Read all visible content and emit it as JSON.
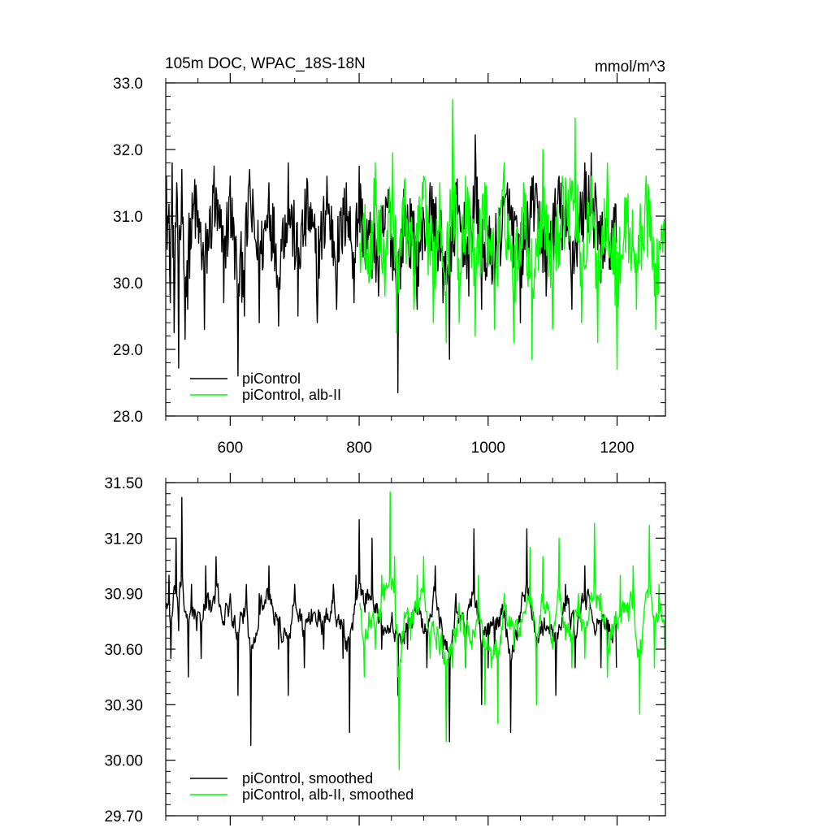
{
  "chart_data": [
    {
      "type": "line",
      "title": "105m DOC, WPAC_18S-18N",
      "units": "mmol/m^3",
      "xlabel": "",
      "ylabel": "",
      "xlim": [
        500,
        1275
      ],
      "ylim": [
        28.0,
        33.0
      ],
      "xticks": [
        600,
        800,
        1000,
        1200
      ],
      "xtick_labels": [
        "600",
        "800",
        "1000",
        "1200"
      ],
      "yticks": [
        28.0,
        29.0,
        30.0,
        31.0,
        32.0,
        33.0
      ],
      "ytick_labels": [
        "28.0",
        "29.0",
        "30.0",
        "31.0",
        "32.0",
        "33.0"
      ],
      "grid": false,
      "legend_position": "bottom-left",
      "series": [
        {
          "name": "piControl",
          "color": "#000000",
          "x_start": 501,
          "x_end": 1199,
          "base": 30.85,
          "noise": 0.55,
          "points": [
            [
              501,
              31.6
            ],
            [
              504,
              30.9
            ],
            [
              507,
              29.7
            ],
            [
              510,
              31.8
            ],
            [
              513,
              29.25
            ],
            [
              517,
              31.5
            ],
            [
              520,
              28.72
            ],
            [
              525,
              31.7
            ],
            [
              530,
              29.15
            ],
            [
              534,
              29.6
            ],
            [
              545,
              31.55
            ],
            [
              560,
              29.3
            ],
            [
              575,
              31.75
            ],
            [
              590,
              29.7
            ],
            [
              600,
              31.6
            ],
            [
              612,
              28.6
            ],
            [
              622,
              29.5
            ],
            [
              630,
              31.7
            ],
            [
              645,
              29.4
            ],
            [
              660,
              31.5
            ],
            [
              675,
              29.35
            ],
            [
              690,
              31.8
            ],
            [
              705,
              29.5
            ],
            [
              720,
              31.5
            ],
            [
              735,
              29.4
            ],
            [
              750,
              31.6
            ],
            [
              765,
              29.6
            ],
            [
              780,
              31.5
            ],
            [
              792,
              29.7
            ],
            [
              800,
              31.75
            ],
            [
              810,
              30.2
            ],
            [
              830,
              29.8
            ],
            [
              845,
              31.4
            ],
            [
              860,
              28.35
            ],
            [
              870,
              31.3
            ],
            [
              890,
              29.6
            ],
            [
              910,
              31.5
            ],
            [
              930,
              29.7
            ],
            [
              940,
              28.85
            ],
            [
              950,
              31.5
            ],
            [
              970,
              29.8
            ],
            [
              980,
              32.22
            ],
            [
              990,
              29.6
            ],
            [
              1010,
              29.9
            ],
            [
              1030,
              31.5
            ],
            [
              1050,
              29.4
            ],
            [
              1070,
              31.6
            ],
            [
              1090,
              29.8
            ],
            [
              1110,
              31.6
            ],
            [
              1130,
              29.6
            ],
            [
              1150,
              31.8
            ],
            [
              1160,
              31.95
            ],
            [
              1175,
              30.0
            ],
            [
              1190,
              30.2
            ],
            [
              1199,
              30.6
            ]
          ]
        },
        {
          "name": "piControl, alb-II",
          "color": "#00ff00",
          "x_start": 801,
          "x_end": 1274,
          "base": 30.75,
          "noise": 0.6,
          "points": [
            [
              801,
              30.6
            ],
            [
              815,
              30.0
            ],
            [
              825,
              31.8
            ],
            [
              840,
              29.8
            ],
            [
              852,
              31.95
            ],
            [
              858,
              29.25
            ],
            [
              870,
              31.5
            ],
            [
              885,
              29.6
            ],
            [
              900,
              31.6
            ],
            [
              915,
              29.4
            ],
            [
              925,
              31.5
            ],
            [
              935,
              29.1
            ],
            [
              945,
              32.75
            ],
            [
              955,
              29.4
            ],
            [
              965,
              31.6
            ],
            [
              980,
              29.2
            ],
            [
              995,
              31.5
            ],
            [
              1010,
              29.3
            ],
            [
              1025,
              31.8
            ],
            [
              1040,
              29.1
            ],
            [
              1055,
              31.5
            ],
            [
              1068,
              28.85
            ],
            [
              1085,
              32.0
            ],
            [
              1100,
              29.3
            ],
            [
              1115,
              31.6
            ],
            [
              1135,
              32.47
            ],
            [
              1145,
              29.4
            ],
            [
              1160,
              31.6
            ],
            [
              1170,
              29.1
            ],
            [
              1185,
              31.8
            ],
            [
              1200,
              28.7
            ],
            [
              1215,
              31.2
            ],
            [
              1230,
              29.6
            ],
            [
              1245,
              31.6
            ],
            [
              1260,
              29.3
            ],
            [
              1274,
              30.6
            ]
          ]
        }
      ]
    },
    {
      "type": "line",
      "title": "",
      "xlabel": "",
      "ylabel": "",
      "xlim": [
        500,
        1275
      ],
      "ylim": [
        29.7,
        31.5
      ],
      "xticks": [
        600,
        800,
        1000,
        1200
      ],
      "xtick_labels": [],
      "yticks": [
        29.7,
        30.0,
        30.3,
        30.6,
        30.9,
        31.2,
        31.5
      ],
      "ytick_labels": [
        "29.70",
        "30.00",
        "30.30",
        "30.60",
        "30.90",
        "31.20",
        "31.50"
      ],
      "grid": false,
      "legend_position": "bottom-left",
      "series": [
        {
          "name": "piControl, smoothed",
          "color": "#000000",
          "x_start": 501,
          "x_end": 1199,
          "base": 30.8,
          "noise": 0.12,
          "points": [
            [
              501,
              30.85
            ],
            [
              505,
              31.0
            ],
            [
              508,
              30.55
            ],
            [
              512,
              30.9
            ],
            [
              516,
              31.2
            ],
            [
              520,
              30.7
            ],
            [
              525,
              31.42
            ],
            [
              530,
              30.8
            ],
            [
              535,
              30.45
            ],
            [
              540,
              30.95
            ],
            [
              548,
              30.7
            ],
            [
              555,
              30.55
            ],
            [
              562,
              31.05
            ],
            [
              570,
              30.8
            ],
            [
              578,
              31.1
            ],
            [
              590,
              30.75
            ],
            [
              600,
              30.9
            ],
            [
              612,
              30.35
            ],
            [
              625,
              30.95
            ],
            [
              632,
              30.08
            ],
            [
              645,
              30.9
            ],
            [
              660,
              31.05
            ],
            [
              675,
              30.6
            ],
            [
              690,
              30.35
            ],
            [
              700,
              30.95
            ],
            [
              715,
              30.5
            ],
            [
              730,
              30.8
            ],
            [
              745,
              30.6
            ],
            [
              760,
              30.95
            ],
            [
              775,
              30.55
            ],
            [
              785,
              30.15
            ],
            [
              795,
              31.0
            ],
            [
              800,
              31.3
            ],
            [
              810,
              30.9
            ],
            [
              820,
              31.2
            ],
            [
              835,
              30.6
            ],
            [
              850,
              30.75
            ],
            [
              860,
              30.35
            ],
            [
              875,
              30.6
            ],
            [
              890,
              30.8
            ],
            [
              905,
              30.5
            ],
            [
              918,
              31.05
            ],
            [
              930,
              30.55
            ],
            [
              940,
              30.1
            ],
            [
              950,
              30.9
            ],
            [
              965,
              30.5
            ],
            [
              978,
              31.25
            ],
            [
              990,
              30.3
            ],
            [
              1000,
              30.5
            ],
            [
              1010,
              30.6
            ],
            [
              1025,
              30.8
            ],
            [
              1035,
              30.15
            ],
            [
              1050,
              30.8
            ],
            [
              1060,
              31.25
            ],
            [
              1075,
              30.5
            ],
            [
              1090,
              30.7
            ],
            [
              1105,
              30.35
            ],
            [
              1120,
              30.95
            ],
            [
              1135,
              30.5
            ],
            [
              1150,
              31.05
            ],
            [
              1165,
              30.7
            ],
            [
              1175,
              30.5
            ],
            [
              1185,
              30.6
            ],
            [
              1199,
              30.5
            ]
          ]
        },
        {
          "name": "piControl, alb-II, smoothed",
          "color": "#00ff00",
          "x_start": 801,
          "x_end": 1274,
          "base": 30.75,
          "noise": 0.14,
          "points": [
            [
              801,
              30.85
            ],
            [
              808,
              30.45
            ],
            [
              815,
              30.8
            ],
            [
              825,
              30.6
            ],
            [
              835,
              31.0
            ],
            [
              848,
              31.45
            ],
            [
              855,
              31.1
            ],
            [
              860,
              30.45
            ],
            [
              862,
              29.95
            ],
            [
              870,
              30.8
            ],
            [
              880,
              30.65
            ],
            [
              890,
              31.0
            ],
            [
              900,
              31.1
            ],
            [
              910,
              30.55
            ],
            [
              920,
              30.6
            ],
            [
              935,
              30.1
            ],
            [
              945,
              30.5
            ],
            [
              955,
              30.85
            ],
            [
              965,
              30.5
            ],
            [
              975,
              30.6
            ],
            [
              985,
              31.0
            ],
            [
              995,
              30.3
            ],
            [
              1005,
              30.5
            ],
            [
              1015,
              30.2
            ],
            [
              1025,
              30.9
            ],
            [
              1040,
              30.6
            ],
            [
              1055,
              30.8
            ],
            [
              1065,
              31.15
            ],
            [
              1075,
              30.3
            ],
            [
              1085,
              31.1
            ],
            [
              1100,
              30.6
            ],
            [
              1110,
              31.2
            ],
            [
              1120,
              30.65
            ],
            [
              1130,
              30.5
            ],
            [
              1140,
              30.9
            ],
            [
              1150,
              30.55
            ],
            [
              1165,
              31.28
            ],
            [
              1175,
              30.9
            ],
            [
              1185,
              30.45
            ],
            [
              1195,
              30.7
            ],
            [
              1205,
              31.0
            ],
            [
              1215,
              30.8
            ],
            [
              1225,
              31.05
            ],
            [
              1235,
              30.25
            ],
            [
              1250,
              31.27
            ],
            [
              1258,
              30.5
            ],
            [
              1265,
              30.95
            ],
            [
              1270,
              30.75
            ],
            [
              1274,
              30.6
            ]
          ]
        }
      ]
    }
  ]
}
